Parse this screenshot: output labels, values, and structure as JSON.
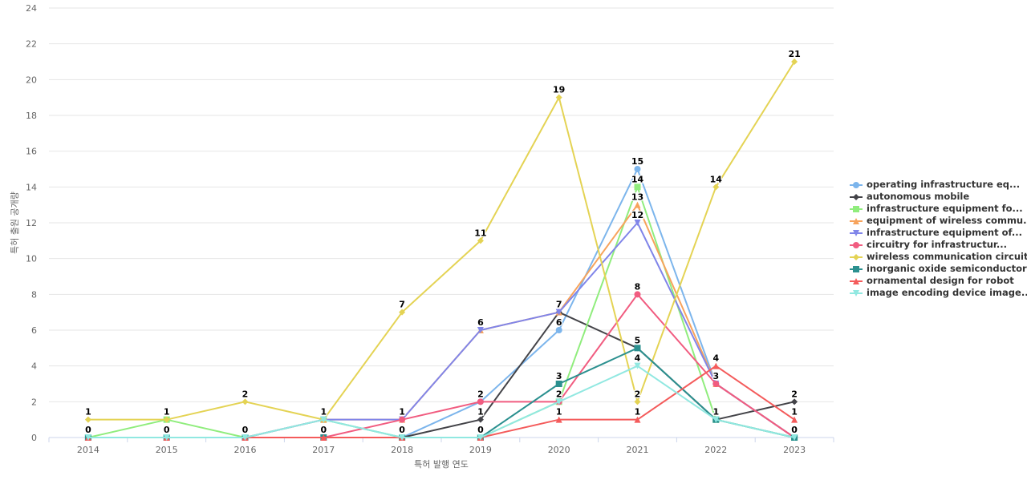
{
  "chart_data": {
    "type": "line",
    "title": "",
    "xlabel": "특허 발행 연도",
    "ylabel": "특허 출원 공개량",
    "ylim": [
      0,
      24
    ],
    "yticks": [
      0,
      2,
      4,
      6,
      8,
      10,
      12,
      14,
      16,
      18,
      20,
      22,
      24
    ],
    "grid": true,
    "legend_position": "right",
    "categories": [
      "2014",
      "2015",
      "2016",
      "2017",
      "2018",
      "2019",
      "2020",
      "2021",
      "2022",
      "2023"
    ],
    "series": [
      {
        "name": "operating infrastructure eq...",
        "color": "#7cb5ec",
        "marker": "circle",
        "values": [
          0,
          0,
          0,
          1,
          0,
          2,
          6,
          15,
          3,
          0
        ]
      },
      {
        "name": "autonomous mobile",
        "color": "#434348",
        "marker": "diamond",
        "values": [
          0,
          0,
          0,
          0,
          0,
          1,
          7,
          5,
          1,
          2
        ]
      },
      {
        "name": "infrastructure equipment fo...",
        "color": "#90ed7d",
        "marker": "square",
        "values": [
          0,
          1,
          0,
          1,
          0,
          0,
          2,
          14,
          1,
          0
        ]
      },
      {
        "name": "equipment of wireless commu...",
        "color": "#f7a35c",
        "marker": "triangle",
        "values": [
          0,
          0,
          0,
          1,
          1,
          6,
          7,
          13,
          3,
          0
        ]
      },
      {
        "name": "infrastructure equipment of...",
        "color": "#8085e9",
        "marker": "triangle-down",
        "values": [
          0,
          0,
          0,
          1,
          1,
          6,
          7,
          12,
          3,
          0
        ]
      },
      {
        "name": "circuitry for infrastructur...",
        "color": "#f15c80",
        "marker": "circle",
        "values": [
          0,
          0,
          0,
          0,
          1,
          2,
          2,
          8,
          3,
          0
        ]
      },
      {
        "name": "wireless communication circuit",
        "color": "#e4d354",
        "marker": "diamond",
        "values": [
          1,
          1,
          2,
          1,
          7,
          11,
          19,
          2,
          14,
          21
        ]
      },
      {
        "name": "inorganic oxide semiconductor",
        "color": "#2b908f",
        "marker": "square",
        "values": [
          0,
          0,
          0,
          0,
          0,
          0,
          3,
          5,
          1,
          0
        ]
      },
      {
        "name": "ornamental design for robot",
        "color": "#f45b5b",
        "marker": "triangle",
        "values": [
          0,
          0,
          0,
          0,
          0,
          0,
          1,
          1,
          4,
          1
        ]
      },
      {
        "name": "image encoding device image...",
        "color": "#91e8e1",
        "marker": "triangle-down",
        "values": [
          0,
          0,
          0,
          1,
          0,
          0,
          2,
          4,
          1,
          0
        ]
      }
    ],
    "data_labels": [
      {
        "x": "2014",
        "value": 1
      },
      {
        "x": "2014",
        "value": 0
      },
      {
        "x": "2015",
        "value": 1
      },
      {
        "x": "2015",
        "value": 0
      },
      {
        "x": "2016",
        "value": 2
      },
      {
        "x": "2016",
        "value": 0
      },
      {
        "x": "2017",
        "value": 1
      },
      {
        "x": "2017",
        "value": 0
      },
      {
        "x": "2018",
        "value": 7
      },
      {
        "x": "2018",
        "value": 1
      },
      {
        "x": "2018",
        "value": 0
      },
      {
        "x": "2019",
        "value": 11
      },
      {
        "x": "2019",
        "value": 6
      },
      {
        "x": "2019",
        "value": 2
      },
      {
        "x": "2019",
        "value": 1
      },
      {
        "x": "2019",
        "value": 0
      },
      {
        "x": "2020",
        "value": 19
      },
      {
        "x": "2020",
        "value": 7
      },
      {
        "x": "2020",
        "value": 6
      },
      {
        "x": "2020",
        "value": 3
      },
      {
        "x": "2020",
        "value": 2
      },
      {
        "x": "2020",
        "value": 1
      },
      {
        "x": "2021",
        "value": 15
      },
      {
        "x": "2021",
        "value": 14
      },
      {
        "x": "2021",
        "value": 13
      },
      {
        "x": "2021",
        "value": 12
      },
      {
        "x": "2021",
        "value": 8
      },
      {
        "x": "2021",
        "value": 5
      },
      {
        "x": "2021",
        "value": 4
      },
      {
        "x": "2021",
        "value": 2
      },
      {
        "x": "2021",
        "value": 1
      },
      {
        "x": "2022",
        "value": 14
      },
      {
        "x": "2022",
        "value": 4
      },
      {
        "x": "2022",
        "value": 3
      },
      {
        "x": "2022",
        "value": 1
      },
      {
        "x": "2023",
        "value": 21
      },
      {
        "x": "2023",
        "value": 2
      },
      {
        "x": "2023",
        "value": 1
      },
      {
        "x": "2023",
        "value": 0
      }
    ]
  }
}
